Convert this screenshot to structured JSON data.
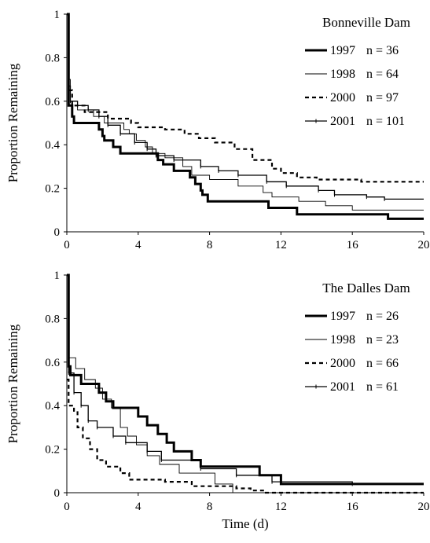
{
  "chart_data": [
    {
      "type": "line",
      "title": "Bonneville Dam",
      "xlabel": "",
      "ylabel": "Proportion Remaining",
      "xlim": [
        0,
        20
      ],
      "ylim": [
        0,
        1
      ],
      "x_ticks": [
        "0",
        "4",
        "8",
        "12",
        "16",
        "20"
      ],
      "y_ticks": [
        "0",
        "0.2",
        "0.4",
        "0.6",
        "0.8",
        "1"
      ],
      "grid": false,
      "legend_position": "top-right",
      "series": [
        {
          "name": "1997",
          "n_label": "n = 36",
          "style": "thick",
          "points": [
            [
              0,
              1
            ],
            [
              0.1,
              0.58
            ],
            [
              0.3,
              0.53
            ],
            [
              0.4,
              0.5
            ],
            [
              1.8,
              0.47
            ],
            [
              2,
              0.44
            ],
            [
              2.1,
              0.42
            ],
            [
              2.6,
              0.39
            ],
            [
              3,
              0.36
            ],
            [
              5.1,
              0.33
            ],
            [
              5.4,
              0.31
            ],
            [
              6,
              0.28
            ],
            [
              6.9,
              0.25
            ],
            [
              7.2,
              0.22
            ],
            [
              7.5,
              0.19
            ],
            [
              7.6,
              0.17
            ],
            [
              7.9,
              0.14
            ],
            [
              11.3,
              0.11
            ],
            [
              12.9,
              0.08
            ],
            [
              18,
              0.06
            ],
            [
              20,
              0.06
            ]
          ]
        },
        {
          "name": "1998",
          "n_label": "n = 64",
          "style": "thin",
          "points": [
            [
              0,
              1
            ],
            [
              0.1,
              0.7
            ],
            [
              0.2,
              0.6
            ],
            [
              0.6,
              0.56
            ],
            [
              1.5,
              0.53
            ],
            [
              2.1,
              0.5
            ],
            [
              3.2,
              0.47
            ],
            [
              3.5,
              0.45
            ],
            [
              3.9,
              0.42
            ],
            [
              4.4,
              0.39
            ],
            [
              4.8,
              0.36
            ],
            [
              5.5,
              0.34
            ],
            [
              6.5,
              0.3
            ],
            [
              7,
              0.26
            ],
            [
              8,
              0.24
            ],
            [
              9.6,
              0.21
            ],
            [
              11,
              0.18
            ],
            [
              11.5,
              0.16
            ],
            [
              13,
              0.14
            ],
            [
              14.5,
              0.12
            ],
            [
              16,
              0.1
            ],
            [
              20,
              0.1
            ]
          ]
        },
        {
          "name": "2000",
          "n_label": "n = 97",
          "style": "dashed",
          "points": [
            [
              0,
              1
            ],
            [
              0.1,
              0.65
            ],
            [
              0.3,
              0.58
            ],
            [
              1,
              0.55
            ],
            [
              2.3,
              0.52
            ],
            [
              3.6,
              0.5
            ],
            [
              4,
              0.48
            ],
            [
              5.5,
              0.47
            ],
            [
              6.6,
              0.45
            ],
            [
              7.4,
              0.43
            ],
            [
              8.3,
              0.41
            ],
            [
              9.4,
              0.38
            ],
            [
              10.4,
              0.33
            ],
            [
              11.5,
              0.29
            ],
            [
              12,
              0.27
            ],
            [
              12.9,
              0.25
            ],
            [
              14,
              0.24
            ],
            [
              16.5,
              0.23
            ],
            [
              20,
              0.23
            ]
          ]
        },
        {
          "name": "2001",
          "n_label": "n = 101",
          "style": "marked",
          "points": [
            [
              0,
              1
            ],
            [
              0.1,
              0.67
            ],
            [
              0.2,
              0.6
            ],
            [
              0.6,
              0.58
            ],
            [
              1.2,
              0.56
            ],
            [
              1.8,
              0.53
            ],
            [
              2.3,
              0.49
            ],
            [
              3,
              0.45
            ],
            [
              3.8,
              0.41
            ],
            [
              4.5,
              0.38
            ],
            [
              5,
              0.35
            ],
            [
              6,
              0.33
            ],
            [
              7.5,
              0.3
            ],
            [
              8.5,
              0.28
            ],
            [
              9.6,
              0.26
            ],
            [
              11.2,
              0.23
            ],
            [
              12.3,
              0.21
            ],
            [
              14.1,
              0.19
            ],
            [
              15,
              0.17
            ],
            [
              16.8,
              0.16
            ],
            [
              17.8,
              0.15
            ],
            [
              20,
              0.15
            ]
          ]
        }
      ]
    },
    {
      "type": "line",
      "title": "The Dalles Dam",
      "xlabel": "Time (d)",
      "ylabel": "Proportion Remaining",
      "xlim": [
        0,
        20
      ],
      "ylim": [
        0,
        1
      ],
      "x_ticks": [
        "0",
        "4",
        "8",
        "12",
        "16",
        "20"
      ],
      "y_ticks": [
        "0",
        "0.2",
        "0.4",
        "0.6",
        "0.8",
        "1"
      ],
      "grid": false,
      "legend_position": "top-right",
      "series": [
        {
          "name": "1997",
          "n_label": "n = 26",
          "style": "thick",
          "points": [
            [
              0,
              1
            ],
            [
              0.1,
              0.58
            ],
            [
              0.2,
              0.54
            ],
            [
              0.8,
              0.5
            ],
            [
              1.8,
              0.46
            ],
            [
              2.2,
              0.42
            ],
            [
              2.6,
              0.39
            ],
            [
              4,
              0.35
            ],
            [
              4.5,
              0.31
            ],
            [
              5.1,
              0.27
            ],
            [
              5.6,
              0.23
            ],
            [
              6,
              0.19
            ],
            [
              7,
              0.15
            ],
            [
              7.5,
              0.12
            ],
            [
              10.8,
              0.08
            ],
            [
              12,
              0.04
            ],
            [
              20,
              0.04
            ]
          ]
        },
        {
          "name": "1998",
          "n_label": "n = 23",
          "style": "thin",
          "points": [
            [
              0,
              1
            ],
            [
              0.1,
              0.62
            ],
            [
              0.5,
              0.57
            ],
            [
              1,
              0.52
            ],
            [
              1.6,
              0.48
            ],
            [
              2,
              0.43
            ],
            [
              2.5,
              0.39
            ],
            [
              3,
              0.3
            ],
            [
              3.4,
              0.26
            ],
            [
              3.9,
              0.22
            ],
            [
              4.5,
              0.17
            ],
            [
              5.2,
              0.13
            ],
            [
              6.3,
              0.09
            ],
            [
              8.3,
              0.04
            ],
            [
              9.3,
              0
            ],
            [
              20,
              0
            ]
          ]
        },
        {
          "name": "2000",
          "n_label": "n = 66",
          "style": "dashed",
          "points": [
            [
              0,
              0.52
            ],
            [
              0.1,
              0.4
            ],
            [
              0.4,
              0.37
            ],
            [
              0.6,
              0.3
            ],
            [
              0.9,
              0.25
            ],
            [
              1.3,
              0.2
            ],
            [
              1.7,
              0.15
            ],
            [
              2.2,
              0.12
            ],
            [
              3,
              0.09
            ],
            [
              3.5,
              0.06
            ],
            [
              5.5,
              0.05
            ],
            [
              7,
              0.03
            ],
            [
              9.5,
              0.02
            ],
            [
              10.3,
              0.01
            ],
            [
              11,
              0
            ],
            [
              20,
              0
            ]
          ]
        },
        {
          "name": "2001",
          "n_label": "n = 61",
          "style": "marked",
          "points": [
            [
              0,
              1
            ],
            [
              0.1,
              0.55
            ],
            [
              0.4,
              0.46
            ],
            [
              0.8,
              0.4
            ],
            [
              1.2,
              0.33
            ],
            [
              1.7,
              0.3
            ],
            [
              2.6,
              0.26
            ],
            [
              3.3,
              0.23
            ],
            [
              4.5,
              0.19
            ],
            [
              5.3,
              0.15
            ],
            [
              7.5,
              0.11
            ],
            [
              9.5,
              0.08
            ],
            [
              11.5,
              0.05
            ],
            [
              16,
              0.04
            ],
            [
              20,
              0.04
            ]
          ]
        }
      ]
    }
  ]
}
